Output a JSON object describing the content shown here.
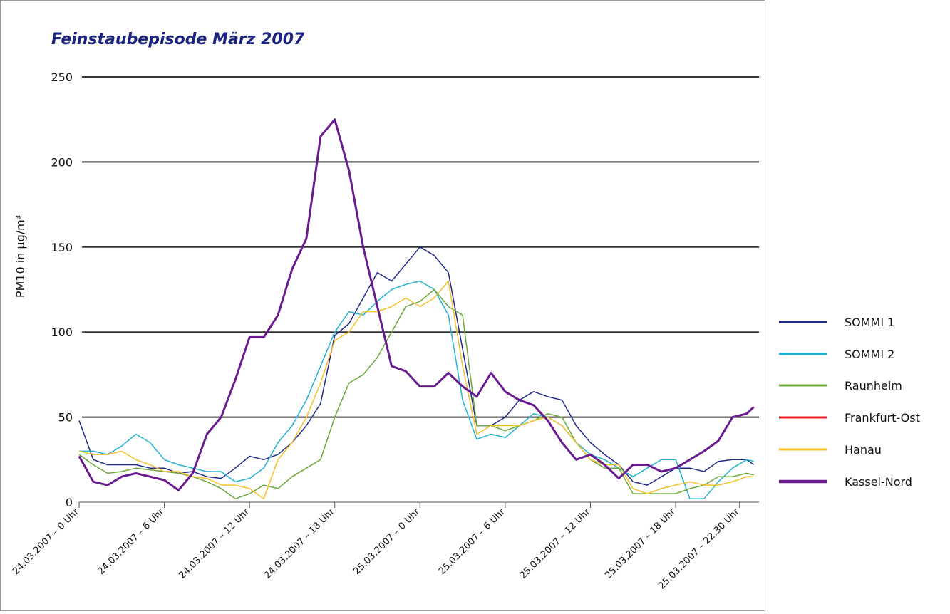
{
  "chart_data": {
    "type": "line",
    "title": "Feinstaubepisode März 2007",
    "y_label": "PM10 in µg/m³",
    "x": [
      0,
      1,
      2,
      3,
      4,
      5,
      6,
      7,
      8,
      9,
      10,
      11,
      12,
      13,
      14,
      15,
      16,
      17,
      18,
      19,
      20,
      21,
      22,
      23,
      24,
      25,
      26,
      27,
      28,
      29,
      30,
      31,
      32,
      33,
      34,
      35,
      36,
      37,
      38,
      39,
      40,
      41,
      42,
      43,
      44,
      45,
      46,
      47,
      47.5
    ],
    "xlim": [
      0,
      47.9
    ],
    "xticks": [
      {
        "value": 0,
        "label": "24.03.2007 – 0 Uhr"
      },
      {
        "value": 6,
        "label": "24.03.2007 – 6 Uhr"
      },
      {
        "value": 12,
        "label": "24.03.2007 – 12 Uhr"
      },
      {
        "value": 18,
        "label": "24.03.2007 – 18 Uhr"
      },
      {
        "value": 24,
        "label": "25.03.2007 – 0 Uhr"
      },
      {
        "value": 30,
        "label": "25.03.2007 – 6 Uhr"
      },
      {
        "value": 36,
        "label": "25.03.2007 – 12 Uhr"
      },
      {
        "value": 42,
        "label": "25.03.2007 – 18 Uhr"
      },
      {
        "value": 46.5,
        "label": "25.03.2007 – 22.30 Uhr"
      }
    ],
    "ylim": [
      0,
      250
    ],
    "yticks": [
      0,
      50,
      100,
      150,
      200,
      250
    ],
    "grid": true,
    "series": [
      {
        "name": "SOMMI 1",
        "color": "#1f2a8a",
        "width": 1.5,
        "values": [
          48,
          25,
          22,
          22,
          22,
          20,
          20,
          17,
          18,
          15,
          14,
          20,
          27,
          25,
          28,
          35,
          45,
          58,
          98,
          105,
          120,
          135,
          130,
          140,
          150,
          145,
          135,
          90,
          45,
          45,
          50,
          60,
          65,
          62,
          60,
          45,
          35,
          28,
          22,
          12,
          10,
          15,
          20,
          20,
          18,
          24,
          25,
          25,
          22
        ]
      },
      {
        "name": "SOMMI 2",
        "color": "#1fb3d1",
        "width": 1.5,
        "values": [
          30,
          30,
          28,
          33,
          40,
          35,
          25,
          22,
          20,
          18,
          18,
          12,
          14,
          20,
          35,
          45,
          60,
          80,
          100,
          112,
          110,
          118,
          125,
          128,
          130,
          125,
          110,
          60,
          37,
          40,
          38,
          45,
          52,
          50,
          45,
          35,
          28,
          25,
          20,
          15,
          20,
          25,
          25,
          2,
          2,
          12,
          20,
          25,
          24
        ]
      },
      {
        "name": "Raunheim",
        "color": "#6aa83a",
        "width": 1.5,
        "values": [
          28,
          22,
          17,
          18,
          20,
          19,
          18,
          17,
          15,
          12,
          8,
          2,
          5,
          10,
          8,
          15,
          20,
          25,
          50,
          70,
          75,
          85,
          100,
          115,
          118,
          125,
          115,
          110,
          45,
          45,
          42,
          45,
          48,
          52,
          50,
          35,
          25,
          20,
          20,
          5,
          5,
          5,
          5,
          8,
          10,
          15,
          15,
          17,
          16
        ]
      },
      {
        "name": "Frankfurt-Ost",
        "color": "#e8202a",
        "width": 1.5,
        "values": [
          null,
          null,
          null,
          null,
          null,
          null,
          null,
          null,
          null,
          null,
          null,
          null,
          null,
          null,
          null,
          null,
          null,
          null,
          null,
          null,
          null,
          null,
          null,
          null,
          null,
          null,
          null,
          null,
          null,
          null,
          null,
          null,
          null,
          null,
          null,
          null,
          null,
          null,
          null,
          null,
          null,
          null,
          null,
          null,
          null,
          null,
          null,
          null,
          null
        ]
      },
      {
        "name": "Hanau",
        "color": "#f5c02a",
        "width": 1.5,
        "values": [
          30,
          28,
          28,
          30,
          25,
          22,
          18,
          18,
          15,
          14,
          10,
          10,
          8,
          2,
          25,
          35,
          50,
          70,
          95,
          100,
          112,
          112,
          115,
          120,
          115,
          120,
          130,
          80,
          40,
          45,
          45,
          45,
          48,
          50,
          45,
          35,
          25,
          22,
          22,
          8,
          5,
          8,
          10,
          12,
          10,
          10,
          12,
          15,
          15
        ]
      },
      {
        "name": "Kassel-Nord",
        "color": "#6a1b8f",
        "width": 3,
        "values": [
          27,
          12,
          10,
          15,
          17,
          15,
          13,
          7,
          17,
          40,
          50,
          72,
          97,
          97,
          110,
          137,
          155,
          215,
          225,
          195,
          150,
          115,
          80,
          77,
          68,
          68,
          76,
          68,
          62,
          76,
          65,
          60,
          57,
          48,
          35,
          25,
          28,
          22,
          14,
          22,
          22,
          18,
          20,
          25,
          30,
          36,
          50,
          52,
          56
        ]
      }
    ]
  }
}
